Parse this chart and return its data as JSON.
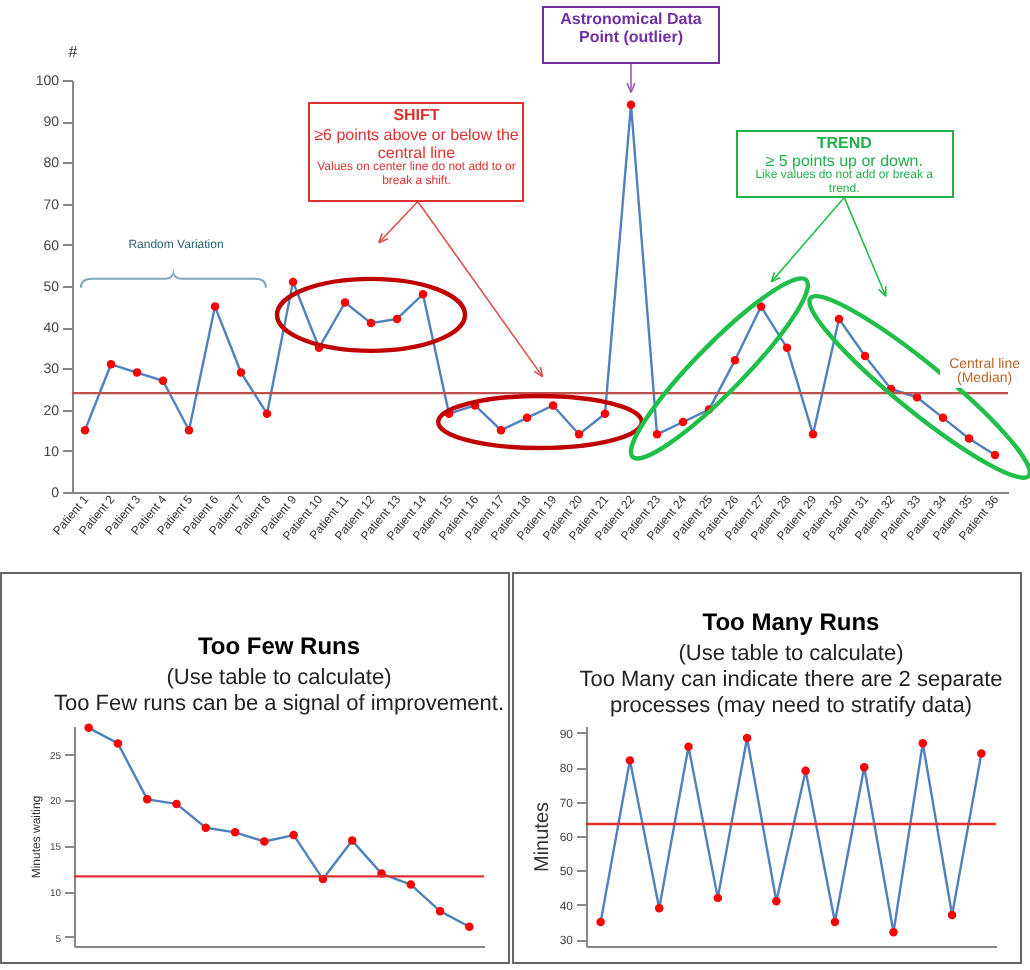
{
  "chart_data": [
    {
      "type": "line",
      "ylabel": "#",
      "categories": [
        "Patient 1",
        "Patient 2",
        "Patient 3",
        "Patient 4",
        "Patient 5",
        "Patient 6",
        "Patient 7",
        "Patient 8",
        "Patient 9",
        "Patient 10",
        "Patient 11",
        "Patient 12",
        "Patient 13",
        "Patient 14",
        "Patient 15",
        "Patient 16",
        "Patient 17",
        "Patient 18",
        "Patient 19",
        "Patient 20",
        "Patient 21",
        "Patient 22",
        "Patient 23",
        "Patient 24",
        "Patient 25",
        "Patient 26",
        "Patient 27",
        "Patient 28",
        "Patient 29",
        "Patient 30",
        "Patient 31",
        "Patient 32",
        "Patient 33",
        "Patient 34",
        "Patient 35",
        "Patient 36"
      ],
      "series": [
        {
          "color": "#4f81bd",
          "values": [
            15,
            31,
            29,
            27,
            15,
            45,
            29,
            19,
            51,
            35,
            46,
            41,
            42,
            48,
            19,
            21,
            15,
            18,
            21,
            14,
            19,
            94,
            14,
            17,
            20,
            32,
            45,
            35,
            14,
            42,
            33,
            25,
            23,
            18,
            13,
            9
          ]
        }
      ],
      "ylim": [
        0,
        100
      ],
      "yticks": [
        0,
        10,
        20,
        30,
        40,
        50,
        60,
        70,
        80,
        90,
        100
      ],
      "marker": "circle",
      "grid": false,
      "legend": false,
      "ref_lines": [
        {
          "axis": "y",
          "value": 24,
          "label": "Central line (Median)",
          "color": "#c0504d"
        }
      ],
      "annotations": [
        "Random Variation",
        "SHIFT",
        "≥6 points above or below the central line",
        "Values on center line do not add to or break a shift.",
        "Astronomical Data Point (outlier)",
        "TREND",
        "≥ 5 points up or down.",
        "Like values do not add or break a trend."
      ]
    },
    {
      "type": "line",
      "title": "Too Few Runs",
      "subtitle": "(Use table to calculate)",
      "ylabel": "Minutes waiting",
      "categories": [
        null,
        null,
        null,
        null,
        null,
        null,
        null,
        null,
        null,
        null,
        null,
        null,
        null,
        null
      ],
      "series": [
        {
          "color": "#4f81bd",
          "values": [
            27.8,
            26.1,
            20,
            19.5,
            16.9,
            16.4,
            15.4,
            16.1,
            11.3,
            15.5,
            11.9,
            10.7,
            7.8,
            6.1
          ]
        }
      ],
      "ylim": [
        4,
        28
      ],
      "yticks": [
        5,
        10,
        15,
        20,
        25
      ],
      "marker": "circle",
      "grid": false,
      "legend": false,
      "tick_labels": "y",
      "ref_lines": [
        {
          "axis": "y",
          "value": 11.6,
          "color": "#e03030"
        }
      ],
      "annotations": [
        "Too Few runs can be a signal of improvement."
      ]
    },
    {
      "type": "line",
      "title": "Too Many Runs",
      "subtitle": "(Use table to calculate)",
      "ylabel": "Minutes",
      "categories": [
        null,
        null,
        null,
        null,
        null,
        null,
        null,
        null,
        null,
        null,
        null,
        null,
        null,
        null
      ],
      "series": [
        {
          "color": "#4f81bd",
          "values": [
            35,
            82,
            39,
            86,
            42,
            88.5,
            41,
            79,
            35,
            80,
            32,
            87,
            37,
            84
          ]
        }
      ],
      "ylim": [
        28,
        92
      ],
      "yticks": [
        30,
        40,
        50,
        60,
        70,
        80,
        90
      ],
      "marker": "circle",
      "grid": false,
      "legend": false,
      "tick_labels": "y",
      "ref_lines": [
        {
          "axis": "y",
          "value": 63.5,
          "color": "#e03030"
        }
      ],
      "annotations": [
        "Too Many can indicate there are 2 separate processes (may need to stratify data)"
      ]
    }
  ]
}
